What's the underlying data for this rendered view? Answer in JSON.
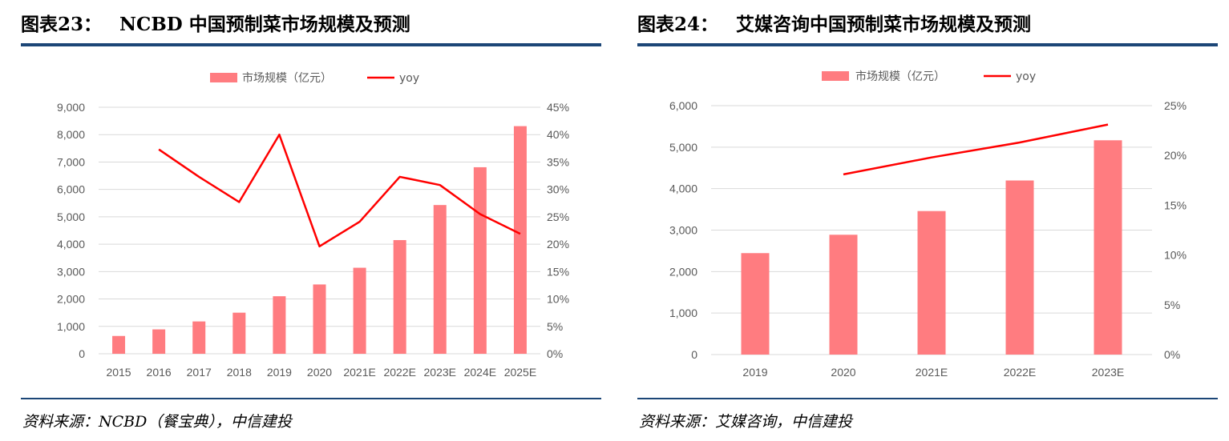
{
  "colors": {
    "bar": "#ff7c80",
    "line": "#ff0000",
    "grid": "#d9d9d9",
    "rule": "#1c4677",
    "tick": "#595959"
  },
  "chart_data": [
    {
      "type": "bar",
      "number": "图表23：",
      "title": "NCBD 中国预制菜市场规模及预测",
      "legend": {
        "bar": "市场规模（亿元）",
        "line": "yoy",
        "position": "top"
      },
      "categories": [
        "2015",
        "2016",
        "2017",
        "2018",
        "2019",
        "2020",
        "2021E",
        "2022E",
        "2023E",
        "2024E",
        "2025E"
      ],
      "series": [
        {
          "name": "市场规模（亿元）",
          "axis": "left",
          "type": "bar",
          "values": [
            650,
            890,
            1180,
            1500,
            2100,
            2530,
            3140,
            4150,
            5430,
            6810,
            8310
          ]
        },
        {
          "name": "yoy",
          "axis": "right",
          "type": "line",
          "values": [
            null,
            37.3,
            32.3,
            27.7,
            40.0,
            19.6,
            24.1,
            32.3,
            30.8,
            25.5,
            21.9
          ]
        }
      ],
      "ylim_left": [
        0,
        9000
      ],
      "yticks_left": [
        "0",
        "1,000",
        "2,000",
        "3,000",
        "4,000",
        "5,000",
        "6,000",
        "7,000",
        "8,000",
        "9,000"
      ],
      "ylim_right": [
        0,
        45
      ],
      "yticks_right": [
        "0%",
        "5%",
        "10%",
        "15%",
        "20%",
        "25%",
        "30%",
        "35%",
        "40%",
        "45%"
      ],
      "grid": true,
      "source": "资料来源：NCBD（餐宝典），中信建投"
    },
    {
      "type": "bar",
      "number": "图表24：",
      "title": "艾媒咨询中国预制菜市场规模及预测",
      "legend": {
        "bar": "市场规模（亿元）",
        "line": "yoy",
        "position": "top"
      },
      "categories": [
        "2019",
        "2020",
        "2021E",
        "2022E",
        "2023E"
      ],
      "series": [
        {
          "name": "市场规模（亿元）",
          "axis": "left",
          "type": "bar",
          "values": [
            2445,
            2888,
            3459,
            4196,
            5165
          ]
        },
        {
          "name": "yoy",
          "axis": "right",
          "type": "line",
          "values": [
            null,
            18.1,
            19.8,
            21.3,
            23.1
          ]
        }
      ],
      "ylim_left": [
        0,
        6000
      ],
      "yticks_left": [
        "0",
        "1,000",
        "2,000",
        "3,000",
        "4,000",
        "5,000",
        "6,000"
      ],
      "ylim_right": [
        0,
        25
      ],
      "yticks_right": [
        "0%",
        "5%",
        "10%",
        "15%",
        "20%",
        "25%"
      ],
      "grid": true,
      "source": "资料来源：艾媒咨询，中信建投"
    }
  ]
}
